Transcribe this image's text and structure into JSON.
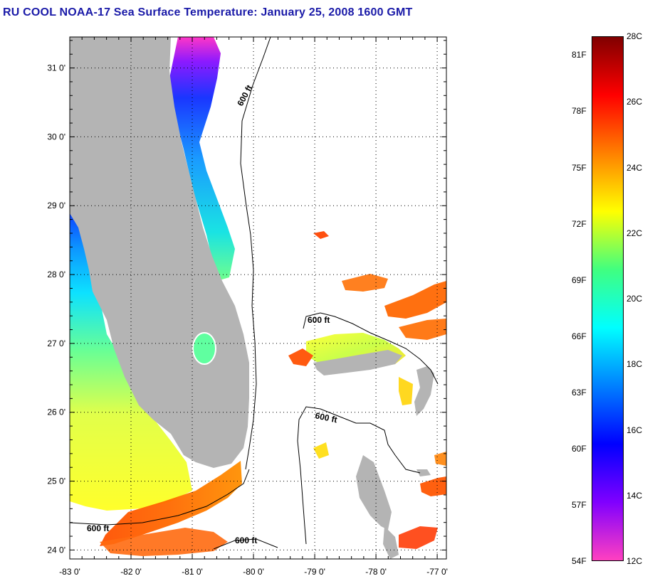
{
  "title": "RU COOL  NOAA-17  Sea Surface Temperature:  January 25, 2008 1600 GMT",
  "map": {
    "lat_ticks": [
      "31 0'",
      "30 0'",
      "29 0'",
      "28 0'",
      "27 0'",
      "26 0'",
      "25 0'",
      "24 0'"
    ],
    "lon_ticks": [
      "-83 0'",
      "-82 0'",
      "-81 0'",
      "-80 0'",
      "-79 0'",
      "-78 0'",
      "-77 0'"
    ],
    "lat_range": [
      23.87,
      31.45
    ],
    "lon_range": [
      -83.0,
      -76.85
    ],
    "contour_labels": [
      "600 ft",
      "600 ft",
      "600 ft",
      "600 ft",
      "600 ft"
    ],
    "colors": {
      "land": "#b4b4b4",
      "ocean_nodata": "#ffffff"
    }
  },
  "colorbar": {
    "celsius_labels": [
      "28C",
      "26C",
      "24C",
      "22C",
      "20C",
      "18C",
      "16C",
      "14C",
      "12C"
    ],
    "fahrenheit_labels": [
      "81F",
      "78F",
      "75F",
      "72F",
      "69F",
      "66F",
      "63F",
      "60F",
      "57F",
      "54F"
    ],
    "range_c": [
      12,
      28
    ],
    "range_f": [
      54,
      82
    ],
    "gradient": [
      "#800000",
      "#ff0000",
      "#ff8000",
      "#ffff00",
      "#40ff80",
      "#00ffff",
      "#0080ff",
      "#0000ff",
      "#8000ff",
      "#ff40c0"
    ]
  }
}
